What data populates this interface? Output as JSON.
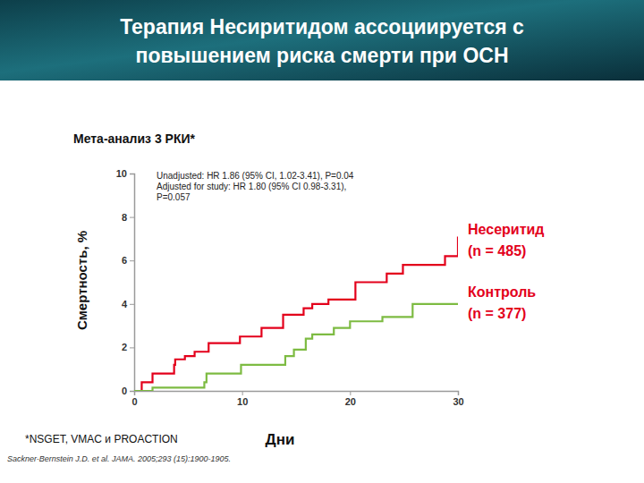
{
  "chart_data": {
    "type": "line",
    "line_style": "step",
    "title": [
      "Терапия Несиритидом ассоциируется  с",
      "повышением  риска смерти при ОСН"
    ],
    "subtitle": "Мета-анализ 3 РКИ*",
    "annotations": [
      "Unadjusted: HR 1.86 (95% CI, 1.02-3.41), P=0.04",
      "Adjusted for study: HR 1.80 (95% CI 0.98-3.31),",
      "P=0.057"
    ],
    "x_label": "Дни",
    "y_label": "Смертность, %",
    "footnote": "*NSGET, VMAC и PROACTION",
    "source": "Sackner-Bernstein J.D. et al. JAMA. 2005;293 (15):1900-1905.",
    "xlim": [
      0,
      30
    ],
    "ylim": [
      0,
      10
    ],
    "xticks": [
      0,
      10,
      20,
      30
    ],
    "yticks": [
      0,
      2,
      4,
      6,
      8,
      10
    ],
    "grid": false,
    "series": [
      {
        "name": "Несеритид (n = 485)",
        "color": "#e3001b",
        "x": [
          0,
          0.7,
          1.7,
          3.7,
          3.8,
          4.7,
          5.6,
          6.9,
          9.8,
          11.8,
          13.8,
          15.7,
          16.5,
          18,
          20.5,
          23.4,
          24.9,
          28.8,
          30
        ],
        "values": [
          0,
          0.4,
          0.8,
          1.2,
          1.45,
          1.6,
          1.8,
          2.2,
          2.5,
          2.9,
          3.5,
          3.8,
          4.0,
          4.2,
          5.0,
          5.4,
          5.8,
          6.2,
          7.1
        ]
      },
      {
        "name": "Контроль (n = 377)",
        "color": "#7dbb42",
        "x": [
          0,
          1.7,
          6.5,
          6.7,
          9.9,
          14,
          14.8,
          15.9,
          16.5,
          18.5,
          20,
          23,
          25.8,
          30
        ],
        "values": [
          0,
          0.15,
          0.4,
          0.8,
          1.2,
          1.6,
          1.9,
          2.4,
          2.6,
          2.9,
          3.2,
          3.4,
          4.0,
          4.0
        ]
      }
    ]
  }
}
